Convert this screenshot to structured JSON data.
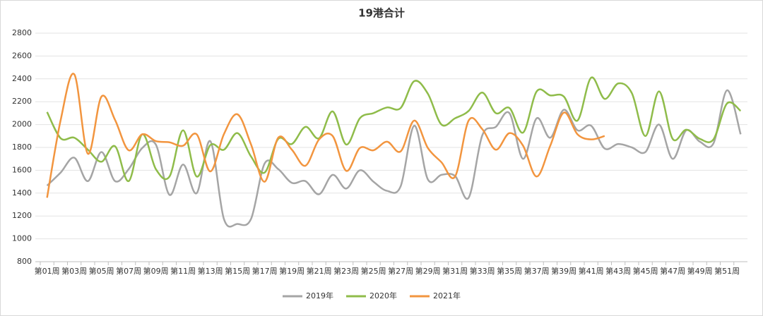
{
  "chart_data": {
    "type": "line",
    "title": "19港合计",
    "categories": [
      "第01周",
      null,
      "第03周",
      null,
      "第05周",
      null,
      "第07周",
      null,
      "第09周",
      null,
      "第11周",
      null,
      "第13周",
      null,
      "第15周",
      null,
      "第17周",
      null,
      "第19周",
      null,
      "第21周",
      null,
      "第23周",
      null,
      "第25周",
      null,
      "第27周",
      null,
      "第29周",
      null,
      "第31周",
      null,
      "第33周",
      null,
      "第35周",
      null,
      "第37周",
      null,
      "第39周",
      null,
      "第41周",
      null,
      "第43周",
      null,
      "第45周",
      null,
      "第47周",
      null,
      "第49周",
      null,
      "第51周",
      null
    ],
    "series": [
      {
        "name": "2019年",
        "color": "#a5a5a5",
        "values": [
          1466,
          1580,
          1710,
          1505,
          1760,
          1505,
          1610,
          1795,
          1825,
          1385,
          1650,
          1400,
          1855,
          1175,
          1130,
          1175,
          1660,
          1610,
          1490,
          1505,
          1390,
          1560,
          1440,
          1600,
          1500,
          1420,
          1460,
          1990,
          1520,
          1560,
          1550,
          1360,
          1905,
          1980,
          2100,
          1700,
          2055,
          1885,
          2130,
          1950,
          1990,
          1790,
          1830,
          1800,
          1760,
          2000,
          1700,
          1950,
          1850,
          1835,
          2300,
          1915
        ]
      },
      {
        "name": "2020年",
        "color": "#8fbc4a",
        "values": [
          2110,
          1880,
          1885,
          1780,
          1675,
          1810,
          1505,
          1915,
          1610,
          1545,
          1950,
          1545,
          1820,
          1780,
          1925,
          1720,
          1580,
          1875,
          1830,
          1980,
          1880,
          2115,
          1825,
          2055,
          2100,
          2150,
          2145,
          2380,
          2270,
          2000,
          2055,
          2120,
          2280,
          2100,
          2145,
          1930,
          2290,
          2255,
          2245,
          2035,
          2410,
          2225,
          2360,
          2275,
          1900,
          2290,
          1875,
          1955,
          1875,
          1870,
          2185,
          2120
        ]
      },
      {
        "name": "2021年",
        "color": "#f2953f",
        "values": [
          1360,
          2040,
          2440,
          1745,
          2245,
          2040,
          1775,
          1915,
          1855,
          1845,
          1815,
          1915,
          1590,
          1915,
          2090,
          1825,
          1500,
          1885,
          1780,
          1640,
          1870,
          1900,
          1595,
          1795,
          1775,
          1850,
          1765,
          2035,
          1795,
          1670,
          1545,
          2035,
          1960,
          1780,
          1925,
          1815,
          1545,
          1815,
          2105,
          1915,
          1870,
          1900,
          null,
          null,
          null,
          null,
          null,
          null,
          null,
          null,
          null,
          null
        ]
      }
    ],
    "ylim": [
      800,
      2800
    ],
    "yticks": [
      800,
      1000,
      1200,
      1400,
      1600,
      1800,
      2000,
      2200,
      2400,
      2600,
      2800
    ],
    "grid": true,
    "legend": "bottom"
  }
}
